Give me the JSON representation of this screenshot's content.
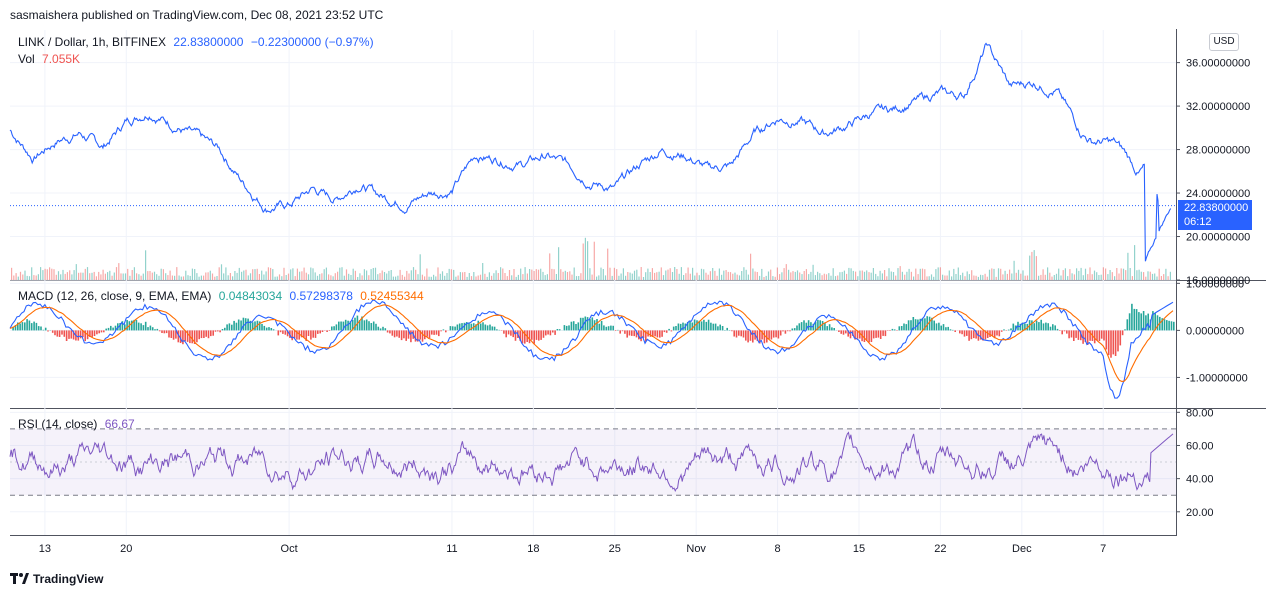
{
  "header": {
    "publisher": "sasmaishera published on TradingView.com, Dec 08, 2021 23:52 UTC"
  },
  "footer": {
    "brand": "TradingView"
  },
  "colors": {
    "price_line": "#2962ff",
    "macd_line": "#2962ff",
    "signal_line": "#ff6d00",
    "hist_up": "#26a69a",
    "hist_down": "#ef5350",
    "rsi_line": "#7e57c2",
    "vol_up": "#26a69a",
    "vol_down": "#ef5350",
    "accent": "#2962ff"
  },
  "price_pane": {
    "symbol": "LINK / Dollar, 1h, BITFINEX",
    "last": "22.83800000",
    "change": "−0.22300000 (−0.97%)",
    "vol_label": "Vol",
    "vol_value": "7.055K",
    "currency_button": "USD",
    "price_tag": "22.83800000",
    "countdown": "06:12"
  },
  "macd_pane": {
    "label": "MACD (12, 26, close, 9, EMA, EMA)",
    "v1": "0.04843034",
    "v2": "0.57298378",
    "v3": "0.52455344"
  },
  "rsi_pane": {
    "label": "RSI (14, close)",
    "value": "66.67"
  },
  "chart_data": [
    {
      "type": "line",
      "name": "price",
      "x_labels": [
        "13",
        "20",
        "Oct",
        "11",
        "18",
        "25",
        "Nov",
        "8",
        "15",
        "22",
        "Dec",
        "7"
      ],
      "y_ticks": [
        "36.00000000",
        "32.00000000",
        "28.00000000",
        "24.00000000",
        "20.00000000",
        "16.00000000"
      ],
      "y_tick_values": [
        36,
        32,
        28,
        24,
        20,
        16
      ],
      "ylim": [
        16.0,
        39.0
      ],
      "x_days": [
        0,
        2,
        4,
        6,
        8,
        10,
        12,
        14,
        16,
        18,
        20,
        22,
        24,
        26,
        28,
        30,
        32,
        34,
        36,
        38,
        40,
        42,
        44,
        46,
        48,
        50,
        52,
        54,
        56,
        58,
        60,
        62,
        64,
        66,
        68,
        70,
        72,
        74,
        76,
        78,
        80,
        82,
        84,
        86,
        88,
        90,
        92,
        93,
        95,
        96,
        97,
        98,
        99
      ],
      "values": [
        29.8,
        27.2,
        28.8,
        29.5,
        28.2,
        30.6,
        31.6,
        30.3,
        29.2,
        28.0,
        25.0,
        22.7,
        22.9,
        24.4,
        23.4,
        24.9,
        23.7,
        23.0,
        24.0,
        24.2,
        27.5,
        27.1,
        26.6,
        27.4,
        26.6,
        25.0,
        24.4,
        26.5,
        28.0,
        27.5,
        26.2,
        26.5,
        29.5,
        30.9,
        30.6,
        29.5,
        30.2,
        31.3,
        31.7,
        32.5,
        33.2,
        32.9,
        37.6,
        33.8,
        34.2,
        33.4,
        29.8,
        28.8,
        28.6,
        27.5,
        25.9,
        26.6,
        22.4
      ],
      "x_tick_days": [
        3,
        10,
        24,
        38,
        45,
        52,
        59,
        66,
        73,
        80,
        87,
        94
      ]
    },
    {
      "type": "bar",
      "name": "volume",
      "note": "hourly volume bars, small relative to price pane"
    },
    {
      "type": "line",
      "name": "MACD (12, 26, close, 9, EMA, EMA)",
      "y_ticks": [
        "1.00000000",
        "0.00000000",
        "-1.00000000"
      ],
      "y_tick_values": [
        1,
        0,
        -1
      ],
      "ylim": [
        -1.65,
        1.05
      ],
      "last_values": {
        "histogram": 0.04843034,
        "macd": 0.57298378,
        "signal": 0.52455344
      }
    },
    {
      "type": "line",
      "name": "RSI (14, close)",
      "y_ticks": [
        "80.00",
        "60.00",
        "40.00",
        "20.00"
      ],
      "y_tick_values": [
        80,
        60,
        40,
        20
      ],
      "ylim": [
        6,
        82
      ],
      "bands": [
        30,
        70
      ],
      "last_value": 66.67
    }
  ]
}
